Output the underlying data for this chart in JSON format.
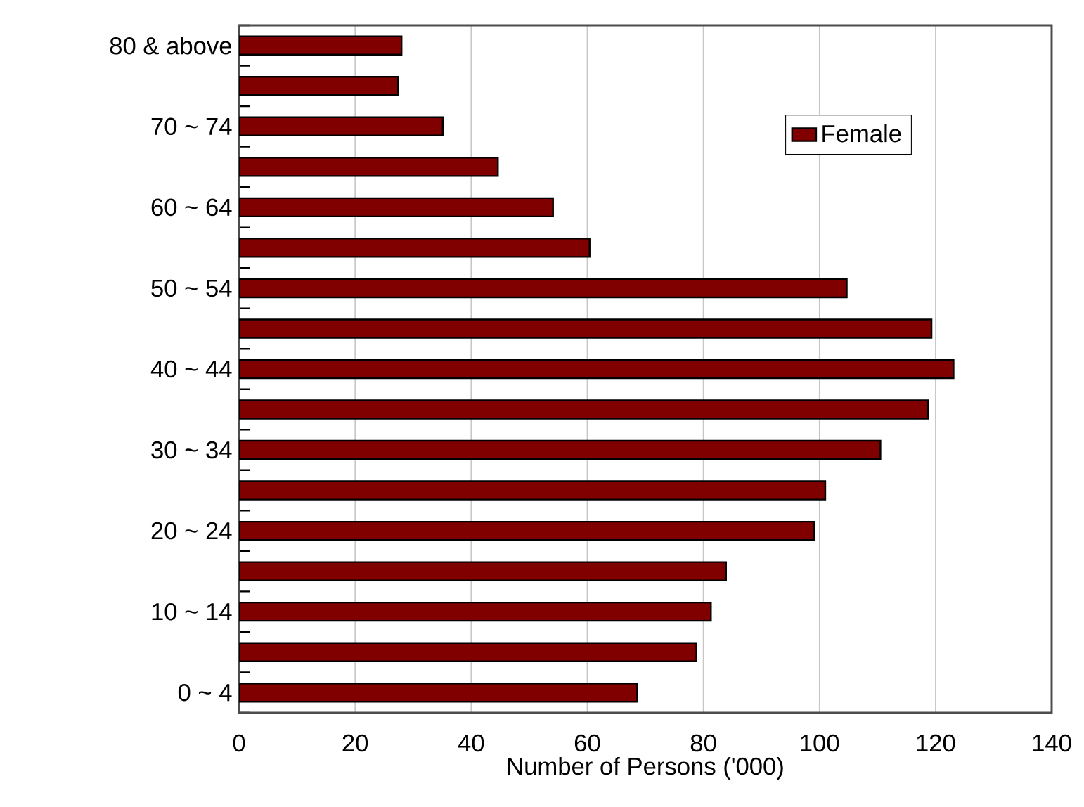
{
  "chart_data": {
    "type": "bar",
    "orientation": "horizontal",
    "xlabel": "Number of Persons ('000)",
    "categories": [
      "80 & above",
      null,
      "70 ~ 74",
      null,
      "60 ~ 64",
      null,
      "50 ~ 54",
      null,
      "40 ~ 44",
      null,
      "30 ~ 34",
      null,
      "20 ~ 24",
      null,
      "10 ~ 14",
      null,
      "0 ~ 4"
    ],
    "series": [
      {
        "name": "Female",
        "color": "#800000",
        "values": [
          28.0,
          27.4,
          35.1,
          44.6,
          54.1,
          60.4,
          104.7,
          119.3,
          123.1,
          118.7,
          110.5,
          101.0,
          99.1,
          83.9,
          81.3,
          78.8,
          68.6
        ]
      }
    ],
    "xlim": [
      0,
      140
    ],
    "xticks": [
      0,
      20,
      40,
      60,
      80,
      100,
      120,
      140
    ],
    "grid": "x",
    "legend": "top right"
  }
}
